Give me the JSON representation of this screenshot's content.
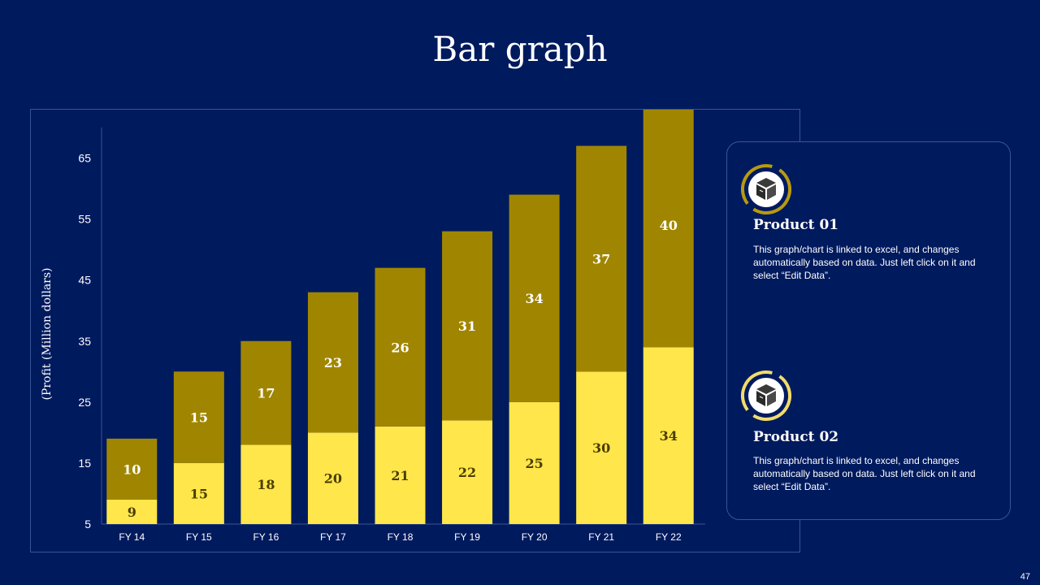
{
  "slide": {
    "title": "Bar graph",
    "page_number": "47"
  },
  "products": [
    {
      "title": "Product 01",
      "description": "This graph/chart is linked to excel, and changes automatically based on data. Just left click on it and select “Edit Data”.",
      "icon": "box-icon"
    },
    {
      "title": "Product 02",
      "description": "This graph/chart is linked to excel, and changes automatically based on data. Just left click on it and select “Edit Data”.",
      "icon": "box-icon"
    }
  ],
  "colors": {
    "background": "#001a5e",
    "series_bottom": "#ffe64a",
    "series_top": "#a08600",
    "label_dark": "#4a3d00",
    "label_light": "#ffffff",
    "ring_light": "#f1dc6b",
    "ring_dark": "#b89a10"
  },
  "chart_data": {
    "type": "bar",
    "stacked": true,
    "title": "",
    "xlabel": "",
    "ylabel": "(Profit (Million dollars)",
    "categories": [
      "FY 14",
      "FY 15",
      "FY 16",
      "FY 17",
      "FY 18",
      "FY 19",
      "FY 20",
      "FY 21",
      "FY 22"
    ],
    "series": [
      {
        "values": [
          9,
          15,
          18,
          20,
          21,
          22,
          25,
          30,
          34
        ]
      },
      {
        "values": [
          10,
          15,
          17,
          23,
          26,
          31,
          34,
          37,
          40
        ]
      }
    ],
    "ylim": [
      5,
      70
    ],
    "yticks": [
      5,
      15,
      25,
      35,
      45,
      55,
      65
    ],
    "grid": false,
    "legend": "none"
  }
}
